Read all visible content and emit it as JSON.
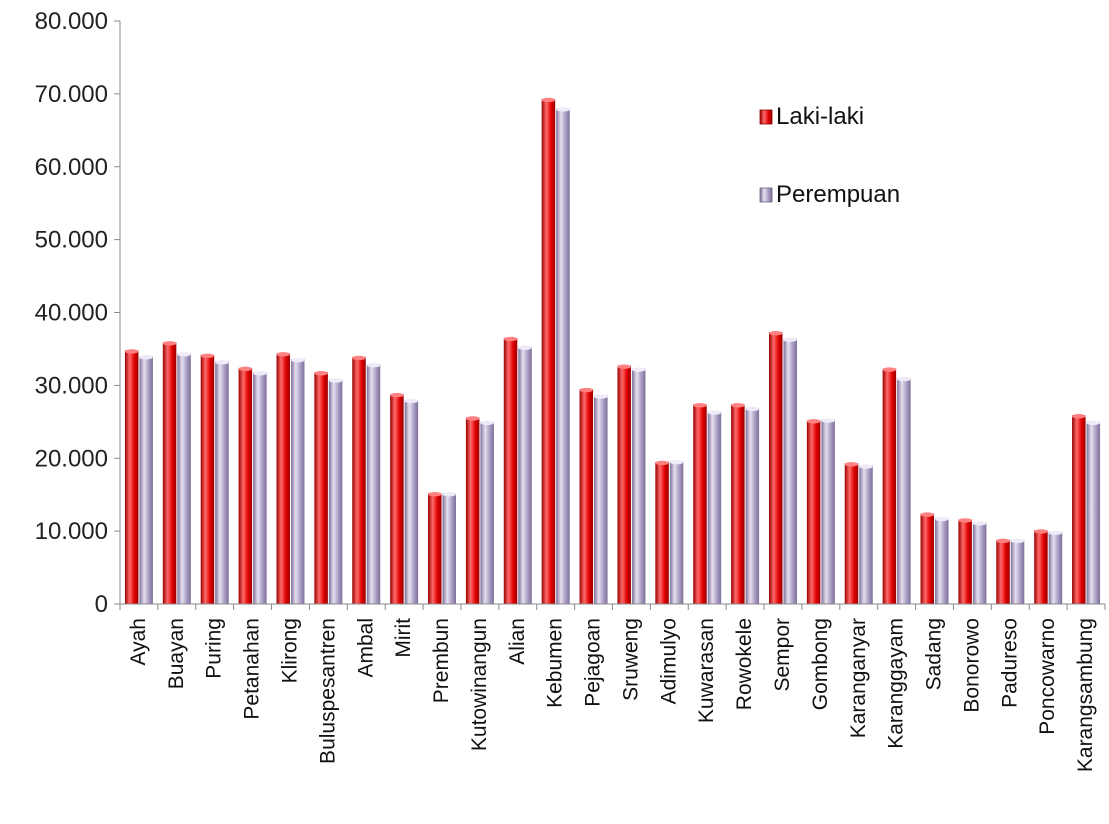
{
  "chart_data": {
    "type": "bar",
    "categories": [
      "Ayah",
      "Buayan",
      "Puring",
      "Petanahan",
      "Klirong",
      "Buluspesantren",
      "Ambal",
      "Mirit",
      "Prembun",
      "Kutowinangun",
      "Alian",
      "Kebumen",
      "Pejagoan",
      "Sruweng",
      "Adimulyo",
      "Kuwarasan",
      "Rowokele",
      "Sempor",
      "Gombong",
      "Karanganyar",
      "Karanggayam",
      "Sadang",
      "Bonorowo",
      "Padureso",
      "Poncowarno",
      "Karangsambung"
    ],
    "series": [
      {
        "name": "Laki-laki",
        "color": "#e00000",
        "values": [
          34800,
          35900,
          34200,
          32400,
          34400,
          31800,
          33900,
          28800,
          15200,
          25600,
          36500,
          69300,
          29500,
          32700,
          19500,
          27400,
          27400,
          37300,
          25200,
          19300,
          32300,
          12400,
          11600,
          8800,
          10100,
          25900
        ]
      },
      {
        "name": "Perempuan",
        "color": "#a99cc3",
        "values": [
          34000,
          34400,
          33300,
          31800,
          33600,
          30800,
          32900,
          28000,
          15200,
          25000,
          35300,
          68000,
          28600,
          32300,
          19600,
          26400,
          26900,
          36400,
          25300,
          19000,
          31000,
          11800,
          11200,
          8800,
          9900,
          25000
        ]
      }
    ],
    "yticks": [
      "0",
      "10.000",
      "20.000",
      "30.000",
      "40.000",
      "50.000",
      "60.000",
      "70.000",
      "80.000"
    ],
    "ylim": [
      0,
      80000
    ],
    "grid": false,
    "legend_position": "top-right"
  }
}
